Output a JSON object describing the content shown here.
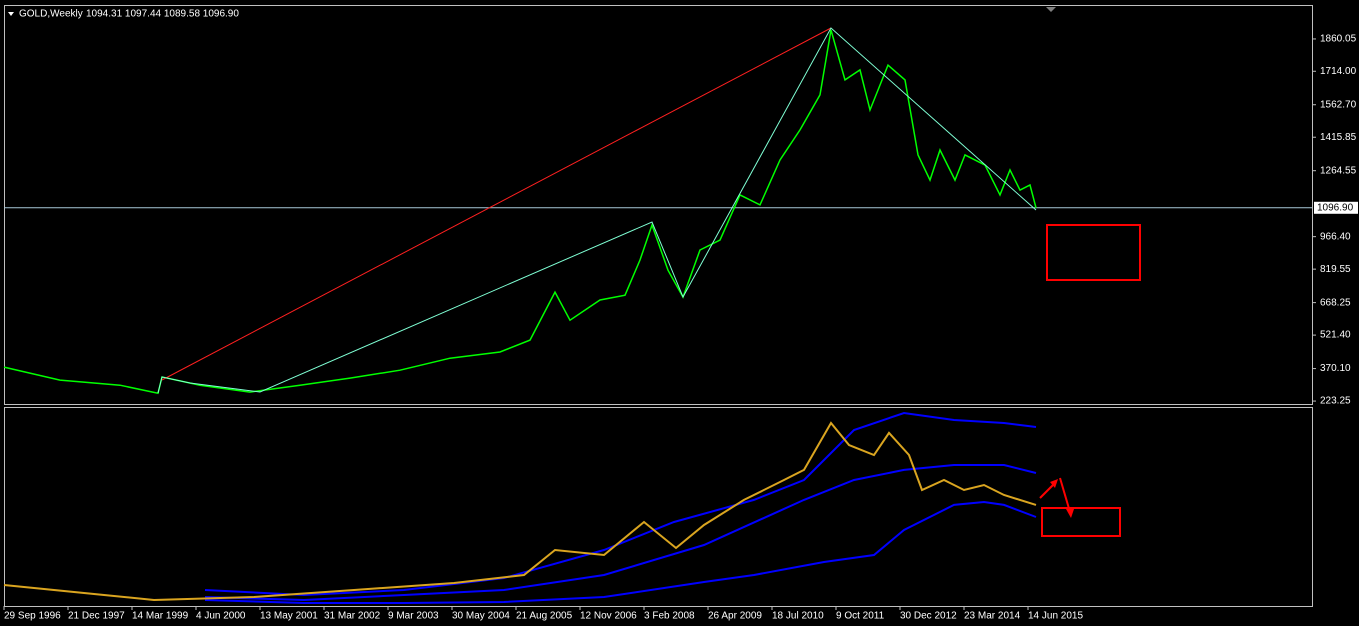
{
  "chart_data": [
    {
      "type": "line",
      "title": "GOLD,Weekly",
      "subtitle": "1094.31 1097.44 1089.58 1096.90",
      "xlim": [
        0,
        1308
      ],
      "ylim": [
        210,
        2009
      ],
      "yticks": [
        1860.05,
        {
          "value": 1714,
          "label": "1714.00"
        },
        {
          "value": 1562.7,
          "label": "1562.70"
        },
        1415.85,
        1264.55,
        {
          "value": 966.4,
          "label": "966.40"
        },
        819.55,
        668.25,
        {
          "value": 521.4,
          "label": "521.40"
        },
        {
          "value": 370.1,
          "label": "370.10"
        },
        223.25
      ],
      "price_line": {
        "value": 1096.9,
        "label": "1096.90"
      },
      "series": [
        {
          "color": "#00ff00",
          "x": [
            0,
            56,
            116,
            154,
            158,
            196,
            246,
            296,
            346,
            396,
            446,
            496,
            526,
            551,
            566,
            596,
            621,
            636,
            648,
            664,
            679,
            696,
            716,
            736,
            756,
            776,
            796,
            816,
            827,
            841,
            856,
            866,
            884,
            901,
            914,
            926,
            936,
            951,
            961,
            981,
            996,
            1006,
            1016,
            1026,
            1032
          ],
          "values": [
            377,
            318,
            295,
            259,
            332,
            295,
            264,
            295,
            327,
            363,
            417,
            445,
            499,
            716,
            589,
            680,
            702,
            861,
            1019,
            815,
            693,
            906,
            951,
            1155,
            1110,
            1313,
            1449,
            1607,
            1901,
            1675,
            1720,
            1539,
            1742,
            1675,
            1336,
            1222,
            1358,
            1222,
            1336,
            1290,
            1155,
            1268,
            1177,
            1200,
            1097
          ]
        }
      ]
    },
    {
      "type": "line",
      "xlim": [
        0,
        1308
      ],
      "ylim": [
        193,
        2060
      ],
      "xticks": [
        {
          "value": 0,
          "label": "29 Sep 1996"
        },
        {
          "value": 64,
          "label": "21 Dec 1997"
        },
        {
          "value": 128,
          "label": "14 Mar 1999"
        },
        {
          "value": 192,
          "label": "4 Jun 2000"
        },
        {
          "value": 256,
          "label": "13 May 2001"
        },
        {
          "value": 320,
          "label": "31 Mar 2002"
        },
        {
          "value": 384,
          "label": "9 Mar 2003"
        },
        {
          "value": 448,
          "label": "30 May 2004"
        },
        {
          "value": 512,
          "label": "21 Aug 2005"
        },
        {
          "value": 576,
          "label": "12 Nov 2006"
        },
        {
          "value": 640,
          "label": "3 Feb 2008"
        },
        {
          "value": 704,
          "label": "26 Apr 2009"
        },
        {
          "value": 768,
          "label": "18 Jul 2010"
        },
        {
          "value": 832,
          "label": "9 Oct 2011"
        },
        {
          "value": 896,
          "label": "30 Dec 2012"
        },
        {
          "value": 960,
          "label": "23 Mar 2014"
        },
        {
          "value": 1024,
          "label": "14 Jun 2015"
        }
      ],
      "series": [
        {
          "color": "#0000ff",
          "x": [
            201,
            300,
            400,
            500,
            600,
            670,
            750,
            800,
            850,
            900,
            950,
            1000,
            1032
          ],
          "values": [
            344,
            297,
            344,
            457,
            721,
            985,
            1193,
            1381,
            1853,
            2013,
            1947,
            1919,
            1881
          ]
        },
        {
          "color": "#0000ff",
          "x": [
            201,
            300,
            400,
            500,
            600,
            700,
            800,
            850,
            900,
            950,
            1000,
            1032
          ],
          "values": [
            278,
            250,
            297,
            344,
            485,
            768,
            1193,
            1381,
            1476,
            1523,
            1523,
            1447
          ]
        },
        {
          "color": "#0000ff",
          "x": [
            201,
            300,
            400,
            500,
            600,
            700,
            750,
            820,
            870,
            900,
            950,
            980,
            1000,
            1032
          ],
          "values": [
            250,
            221,
            221,
            231,
            278,
            419,
            485,
            608,
            674,
            910,
            1146,
            1174,
            1146,
            1032
          ]
        },
        {
          "color": "#daa520",
          "x": [
            0,
            100,
            150,
            250,
            350,
            450,
            520,
            551,
            600,
            640,
            672,
            700,
            740,
            780,
            800,
            827,
            845,
            870,
            885,
            905,
            918,
            940,
            960,
            980,
            1000,
            1032
          ],
          "values": [
            391,
            297,
            250,
            278,
            344,
            410,
            485,
            721,
            674,
            985,
            740,
            957,
            1193,
            1381,
            1476,
            1919,
            1711,
            1617,
            1825,
            1617,
            1287,
            1381,
            1287,
            1334,
            1240,
            1146
          ]
        }
      ]
    }
  ]
}
